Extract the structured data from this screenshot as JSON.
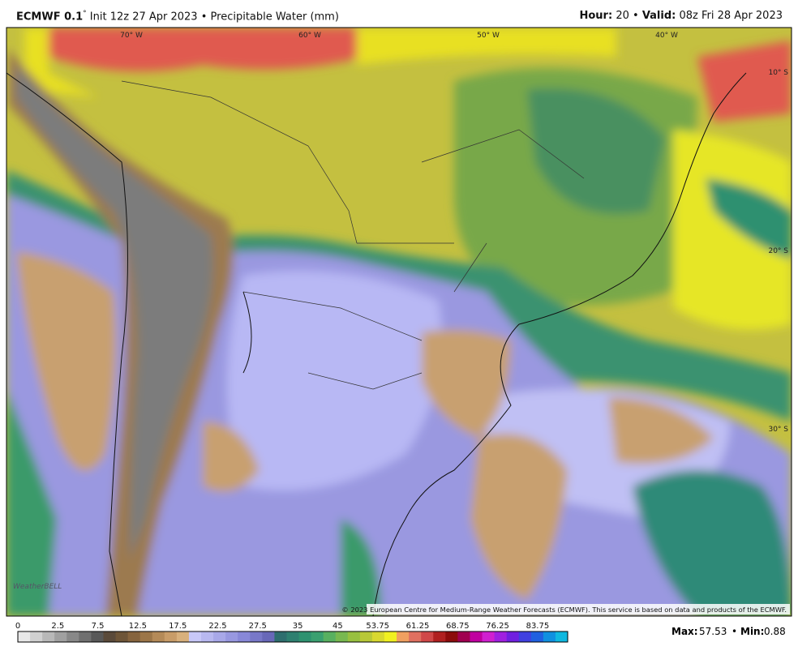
{
  "header": {
    "model": "ECMWF 0.1",
    "degree": "°",
    "init": "Init 12z 27 Apr 2023",
    "separator": "•",
    "product": "Precipitable Water (mm)",
    "hour_label": "Hour:",
    "hour": 20,
    "valid_label": "Valid:",
    "valid": "08z Fri 28 Apr 2023"
  },
  "map": {
    "lon_labels": [
      "70° W",
      "60° W",
      "50° W",
      "40° W"
    ],
    "lat_labels": [
      "10° S",
      "20° S",
      "30° S"
    ],
    "watermark": "WeatherBELL",
    "copyright": "© 2023 European Centre for Medium-Range Weather Forecasts (ECMWF). This service is based on data and products of the ECMWF."
  },
  "colorbar": {
    "labels": [
      0,
      2.5,
      7.5,
      12.5,
      17.5,
      22.5,
      27.5,
      35,
      45,
      53.75,
      61.25,
      68.75,
      76.25,
      83.75
    ],
    "colors": [
      "#e8e8e8",
      "#d0d0d0",
      "#b8b8b8",
      "#a0a0a0",
      "#888888",
      "#707070",
      "#585858",
      "#5a4a3a",
      "#6e5538",
      "#86643e",
      "#9c7648",
      "#b48a58",
      "#c89c68",
      "#d8b07c",
      "#c8c8f8",
      "#b8b8f0",
      "#a8a8e8",
      "#9898e0",
      "#8888d8",
      "#7878c8",
      "#6868b8",
      "#2e6e6e",
      "#2e8070",
      "#2e9270",
      "#3aa070",
      "#58b060",
      "#78b850",
      "#98c040",
      "#b8c838",
      "#d8d830",
      "#f0f020",
      "#f0a060",
      "#e07060",
      "#d04848",
      "#b02020",
      "#8c0c0c",
      "#a00050",
      "#c000a0",
      "#d020d0",
      "#a020e0",
      "#7020e0",
      "#4040e0",
      "#2060e0",
      "#1090e0",
      "#10b8e0"
    ]
  },
  "footer": {
    "max_label": "Max:",
    "max": 57.53,
    "separator": "•",
    "min_label": "Min:",
    "min": 0.88
  }
}
